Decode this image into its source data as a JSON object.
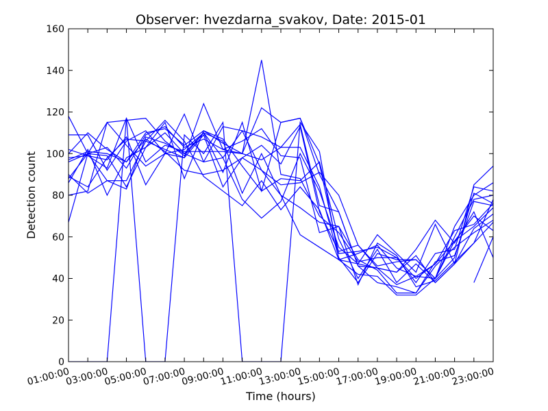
{
  "chart_data": {
    "type": "line",
    "title": "Observer: hvezdarna_svakov, Date: 2015-01",
    "xlabel": "Time (hours)",
    "ylabel": "Detection count",
    "xlim": [
      1,
      23
    ],
    "ylim": [
      0,
      160
    ],
    "grid": false,
    "legend": "none",
    "line_color": "#0000ff",
    "x_tick_labels": [
      "01:00:00",
      "03:00:00",
      "05:00:00",
      "07:00:00",
      "09:00:00",
      "11:00:00",
      "13:00:00",
      "15:00:00",
      "17:00:00",
      "19:00:00",
      "21:00:00",
      "23:00:00"
    ],
    "y_ticks": [
      0,
      20,
      40,
      60,
      80,
      100,
      120,
      140,
      160
    ],
    "x": [
      1,
      2,
      3,
      4,
      5,
      6,
      7,
      8,
      9,
      10,
      11,
      12,
      13,
      14,
      15,
      16,
      17,
      18,
      19,
      20,
      21,
      22,
      23
    ],
    "series": [
      {
        "values": [
          118,
          100,
          115,
          116,
          117,
          106,
          99,
          110,
          91,
          115,
          82,
          115,
          117,
          95,
          52,
          53,
          55,
          50,
          40,
          47,
          63,
          66,
          76
        ]
      },
      {
        "values": [
          97,
          101,
          100,
          96,
          110,
          112,
          104,
          111,
          105,
          100,
          122,
          115,
          117,
          90,
          72,
          46,
          38,
          36,
          33,
          46,
          55,
          62,
          68
        ]
      },
      {
        "values": [
          98,
          99,
          93,
          117,
          96,
          104,
          101,
          101,
          101,
          100,
          97,
          103,
          114,
          75,
          72,
          46,
          45,
          37,
          41,
          40,
          60,
          78,
          80
        ]
      },
      {
        "values": [
          88,
          100,
          103,
          93,
          109,
          113,
          103,
          107,
          102,
          100,
          145,
          90,
          88,
          70,
          62,
          48,
          50,
          50,
          38,
          52,
          54,
          84,
          82
        ]
      },
      {
        "values": [
          80,
          82,
          115,
          104,
          94,
          100,
          102,
          110,
          98,
          111,
          108,
          103,
          103,
          84,
          50,
          38,
          52,
          49,
          49,
          40,
          65,
          80,
          86
        ]
      },
      {
        "values": [
          100,
          110,
          102,
          96,
          107,
          101,
          92,
          90,
          92,
          98,
          104,
          95,
          113,
          72,
          53,
          56,
          45,
          43,
          51,
          38,
          47,
          85,
          94
        ]
      },
      {
        "values": [
          67,
          100,
          99,
          84,
          103,
          115,
          88,
          111,
          107,
          94,
          82,
          88,
          87,
          96,
          59,
          40,
          54,
          38,
          47,
          38,
          47,
          64,
          71
        ]
      },
      {
        "values": [
          90,
          81,
          87,
          87,
          106,
          102,
          98,
          109,
          84,
          98,
          92,
          85,
          86,
          91,
          80,
          56,
          46,
          48,
          49,
          40,
          58,
          70,
          63
        ]
      },
      {
        "values": [
          109,
          109,
          92,
          106,
          111,
          100,
          119,
          96,
          98,
          78,
          69,
          77,
          100,
          82,
          55,
          47,
          45,
          43,
          54,
          68,
          57,
          72,
          50
        ]
      },
      {
        "values": [
          86,
          102,
          80,
          98,
          103,
          110,
          100,
          96,
          113,
          111,
          92,
          80,
          74,
          67,
          65,
          49,
          44,
          33,
          33,
          48,
          51,
          77,
          75
        ]
      },
      {
        "values": [
          96,
          100,
          87,
          83,
          108,
          105,
          100,
          110,
          106,
          81,
          100,
          80,
          61,
          55,
          49,
          42,
          41,
          32,
          32,
          40,
          50,
          81,
          76
        ]
      },
      {
        "values": [
          102,
          99,
          97,
          108,
          85,
          100,
          98,
          124,
          102,
          106,
          112,
          99,
          98,
          62,
          65,
          37,
          57,
          51,
          36,
          39,
          48,
          57,
          78
        ]
      },
      {
        "values": [
          89,
          84,
          98,
          107,
          106,
          116,
          106,
          89,
          82,
          75,
          87,
          73,
          84,
          73,
          49,
          47,
          61,
          52,
          43,
          66,
          47,
          57,
          67
        ]
      },
      {
        "values": [
          0,
          0,
          0,
          117,
          0,
          0,
          109,
          100,
          115,
          0,
          0,
          0,
          115,
          101,
          49,
          52,
          56,
          45,
          41,
          47,
          58,
          65,
          74
        ]
      },
      {
        "values": [
          null,
          null,
          null,
          null,
          null,
          null,
          null,
          null,
          null,
          null,
          null,
          null,
          null,
          null,
          null,
          null,
          null,
          null,
          null,
          null,
          null,
          38,
          60
        ]
      }
    ]
  }
}
